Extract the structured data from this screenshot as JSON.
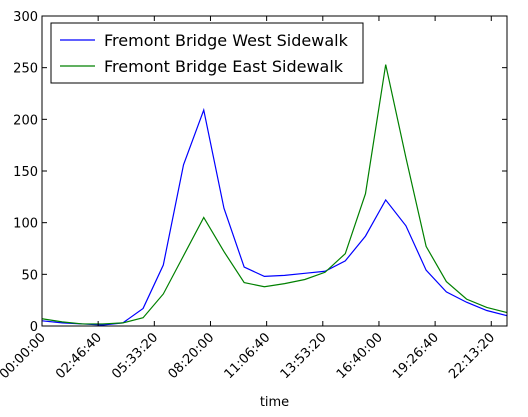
{
  "chart_data": {
    "type": "line",
    "title": "",
    "xlabel": "time",
    "ylabel": "",
    "x": [
      0,
      3600,
      7200,
      10800,
      14400,
      18000,
      21600,
      25200,
      28800,
      32400,
      36000,
      39600,
      43200,
      46800,
      50400,
      54000,
      57600,
      61200,
      64800,
      68400,
      72000,
      75600,
      79200,
      82800
    ],
    "xlim": [
      0,
      82800
    ],
    "ylim": [
      0,
      300
    ],
    "xticks": [
      0,
      10000,
      20000,
      30000,
      40000,
      50000,
      60000,
      70000,
      80000
    ],
    "xtick_labels": [
      "00:00:00",
      "02:46:40",
      "05:33:20",
      "08:20:00",
      "11:06:40",
      "13:53:20",
      "16:40:00",
      "19:26:40",
      "22:13:20"
    ],
    "yticks": [
      0,
      50,
      100,
      150,
      200,
      250,
      300
    ],
    "ytick_labels": [
      "0",
      "50",
      "100",
      "150",
      "200",
      "250",
      "300"
    ],
    "grid": false,
    "legend_position": "top-left",
    "series": [
      {
        "name": "Fremont Bridge West Sidewalk",
        "color": "#0000ff",
        "values": [
          5,
          3,
          2,
          1,
          3,
          17,
          59,
          156,
          209,
          114,
          57,
          48,
          49,
          51,
          53,
          63,
          87,
          122,
          97,
          54,
          33,
          23,
          15,
          10
        ]
      },
      {
        "name": "Fremont Bridge East Sidewalk",
        "color": "#008000",
        "values": [
          7,
          4,
          2,
          2,
          3,
          8,
          31,
          68,
          105,
          72,
          42,
          38,
          41,
          45,
          52,
          70,
          128,
          253,
          163,
          77,
          43,
          26,
          18,
          13
        ]
      }
    ]
  }
}
